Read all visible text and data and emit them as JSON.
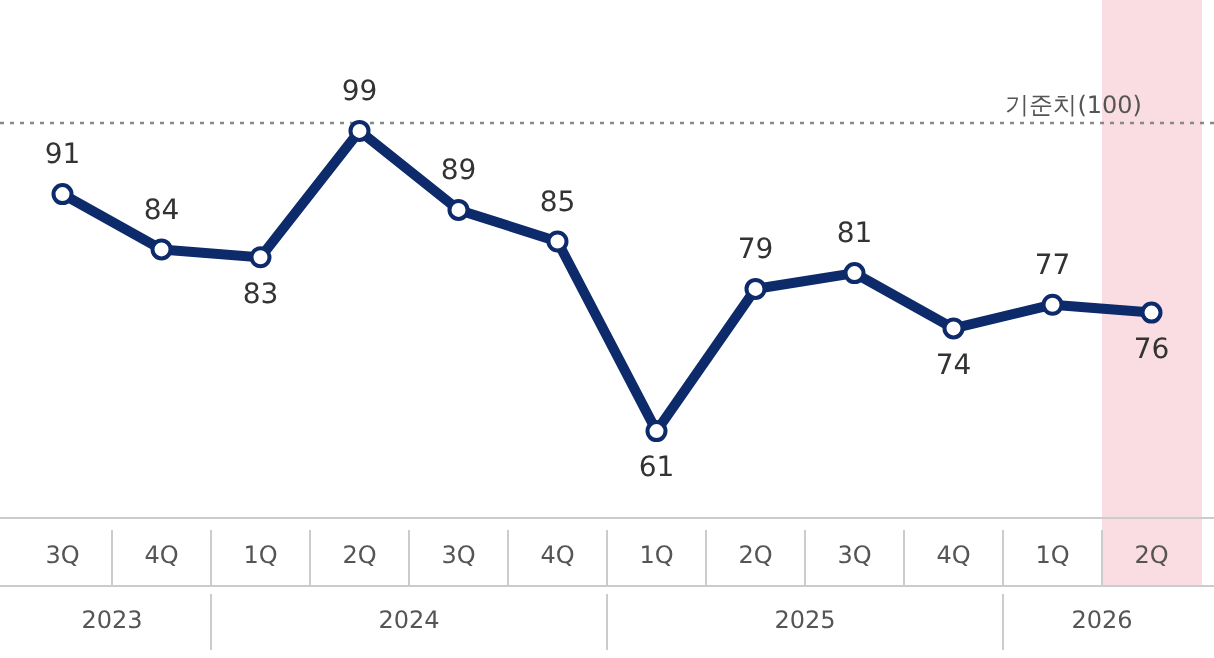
{
  "chart_data": {
    "type": "line",
    "categories": [
      "3Q",
      "4Q",
      "1Q",
      "2Q",
      "3Q",
      "4Q",
      "1Q",
      "2Q",
      "3Q",
      "4Q",
      "1Q",
      "2Q"
    ],
    "series": [
      {
        "color": "#0d2a6b",
        "values": [
          91,
          84,
          83,
          99,
          89,
          85,
          61,
          79,
          81,
          74,
          77,
          76
        ]
      }
    ],
    "data_labels": true,
    "marker": "circle",
    "line_style": "solid",
    "grid": false,
    "legend": false,
    "ref_lines": [
      {
        "axis": "y",
        "value": 100,
        "label": "기준치(100)",
        "color": "#888888",
        "line_style": "dotted"
      }
    ],
    "annotations": [
      "2023",
      "2024",
      "2025",
      "2026"
    ]
  }
}
